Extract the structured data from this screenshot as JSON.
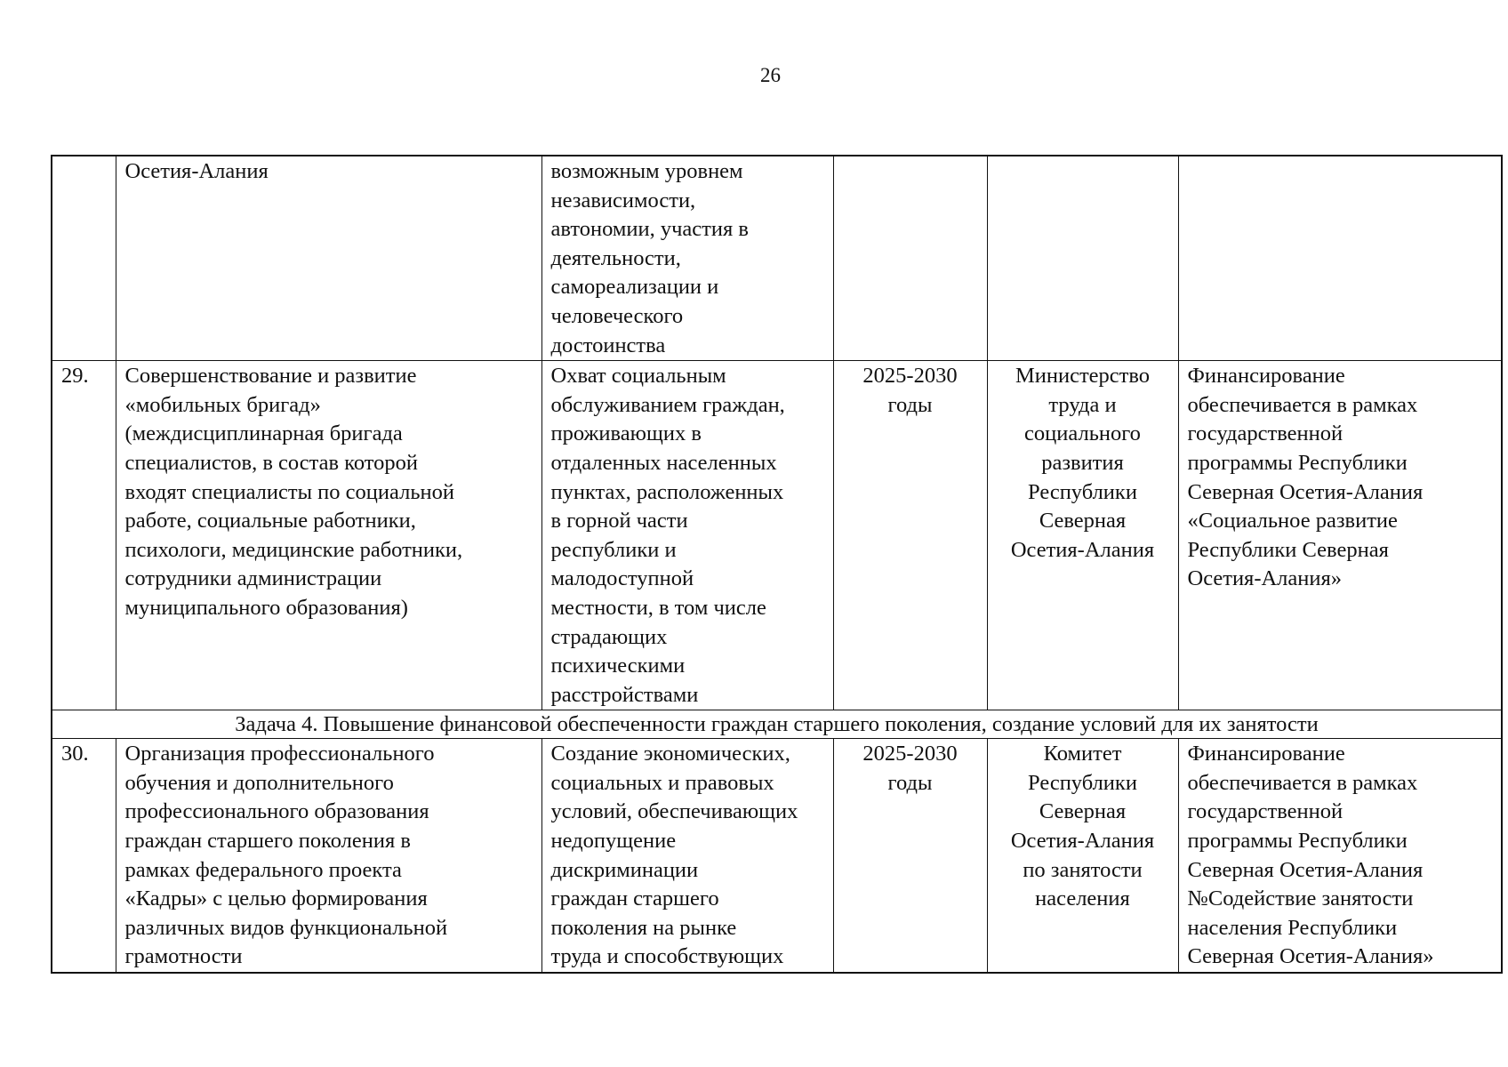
{
  "page_number": "26",
  "rows": [
    {
      "num": "",
      "activity": "Осетия-Алания",
      "result": "возможным уровнем\nнезависимости,\nавтономии, участия в\nдеятельности,\nсамореализации и\nчеловеческого\nдостоинства",
      "period": "",
      "executor": "",
      "financing": ""
    },
    {
      "num": "29.",
      "activity": "Совершенствование и развитие\n«мобильных бригад»\n(междисциплинарная бригада\nспециалистов, в состав которой\nвходят специалисты по социальной\nработе, социальные работники,\nпсихологи, медицинские работники,\nсотрудники администрации\nмуниципального образования)",
      "result": "Охват социальным\nобслуживанием граждан,\nпроживающих в\nотдаленных населенных\nпунктах, расположенных\nв горной части\nреспублики и\nмалодоступной\nместности, в том числе\nстрадающих\nпсихическими\nрасстройствами",
      "period": "2025-2030\nгоды",
      "executor": "Министерство\nтруда и\nсоциального\nразвития\nРеспублики\nСеверная\nОсетия-Алания",
      "financing": "Финансирование\nобеспечивается в рамках\nгосударственной\nпрограммы Республики\nСеверная Осетия-Алания\n«Социальное развитие\nРеспублики Северная\nОсетия-Алания»"
    },
    {
      "num": "30.",
      "activity": "Организация профессионального\nобучения и дополнительного\nпрофессионального образования\nграждан старшего поколения в\nрамках федерального проекта\n«Кадры» с целью формирования\nразличных видов функциональной\nграмотности",
      "result": "Создание экономических,\nсоциальных и правовых\nусловий, обеспечивающих\nнедопущение\nдискриминации\nграждан   старшего\nпоколения   на  рынке\nтруда и способствующих",
      "period": "2025-2030\nгоды",
      "executor": "Комитет\nРеспублики\nСеверная\nОсетия-Алания\nпо занятости\nнаселения",
      "financing": "Финансирование\nобеспечивается в рамках\nгосударственной\nпрограммы Республики\nСеверная Осетия-Алания\n№Содействие занятости\nнаселения Республики\nСеверная Осетия-Алания»"
    }
  ],
  "task_heading": "Задача 4. Повышение финансовой обеспеченности граждан старшего поколения, создание условий для их занятости"
}
